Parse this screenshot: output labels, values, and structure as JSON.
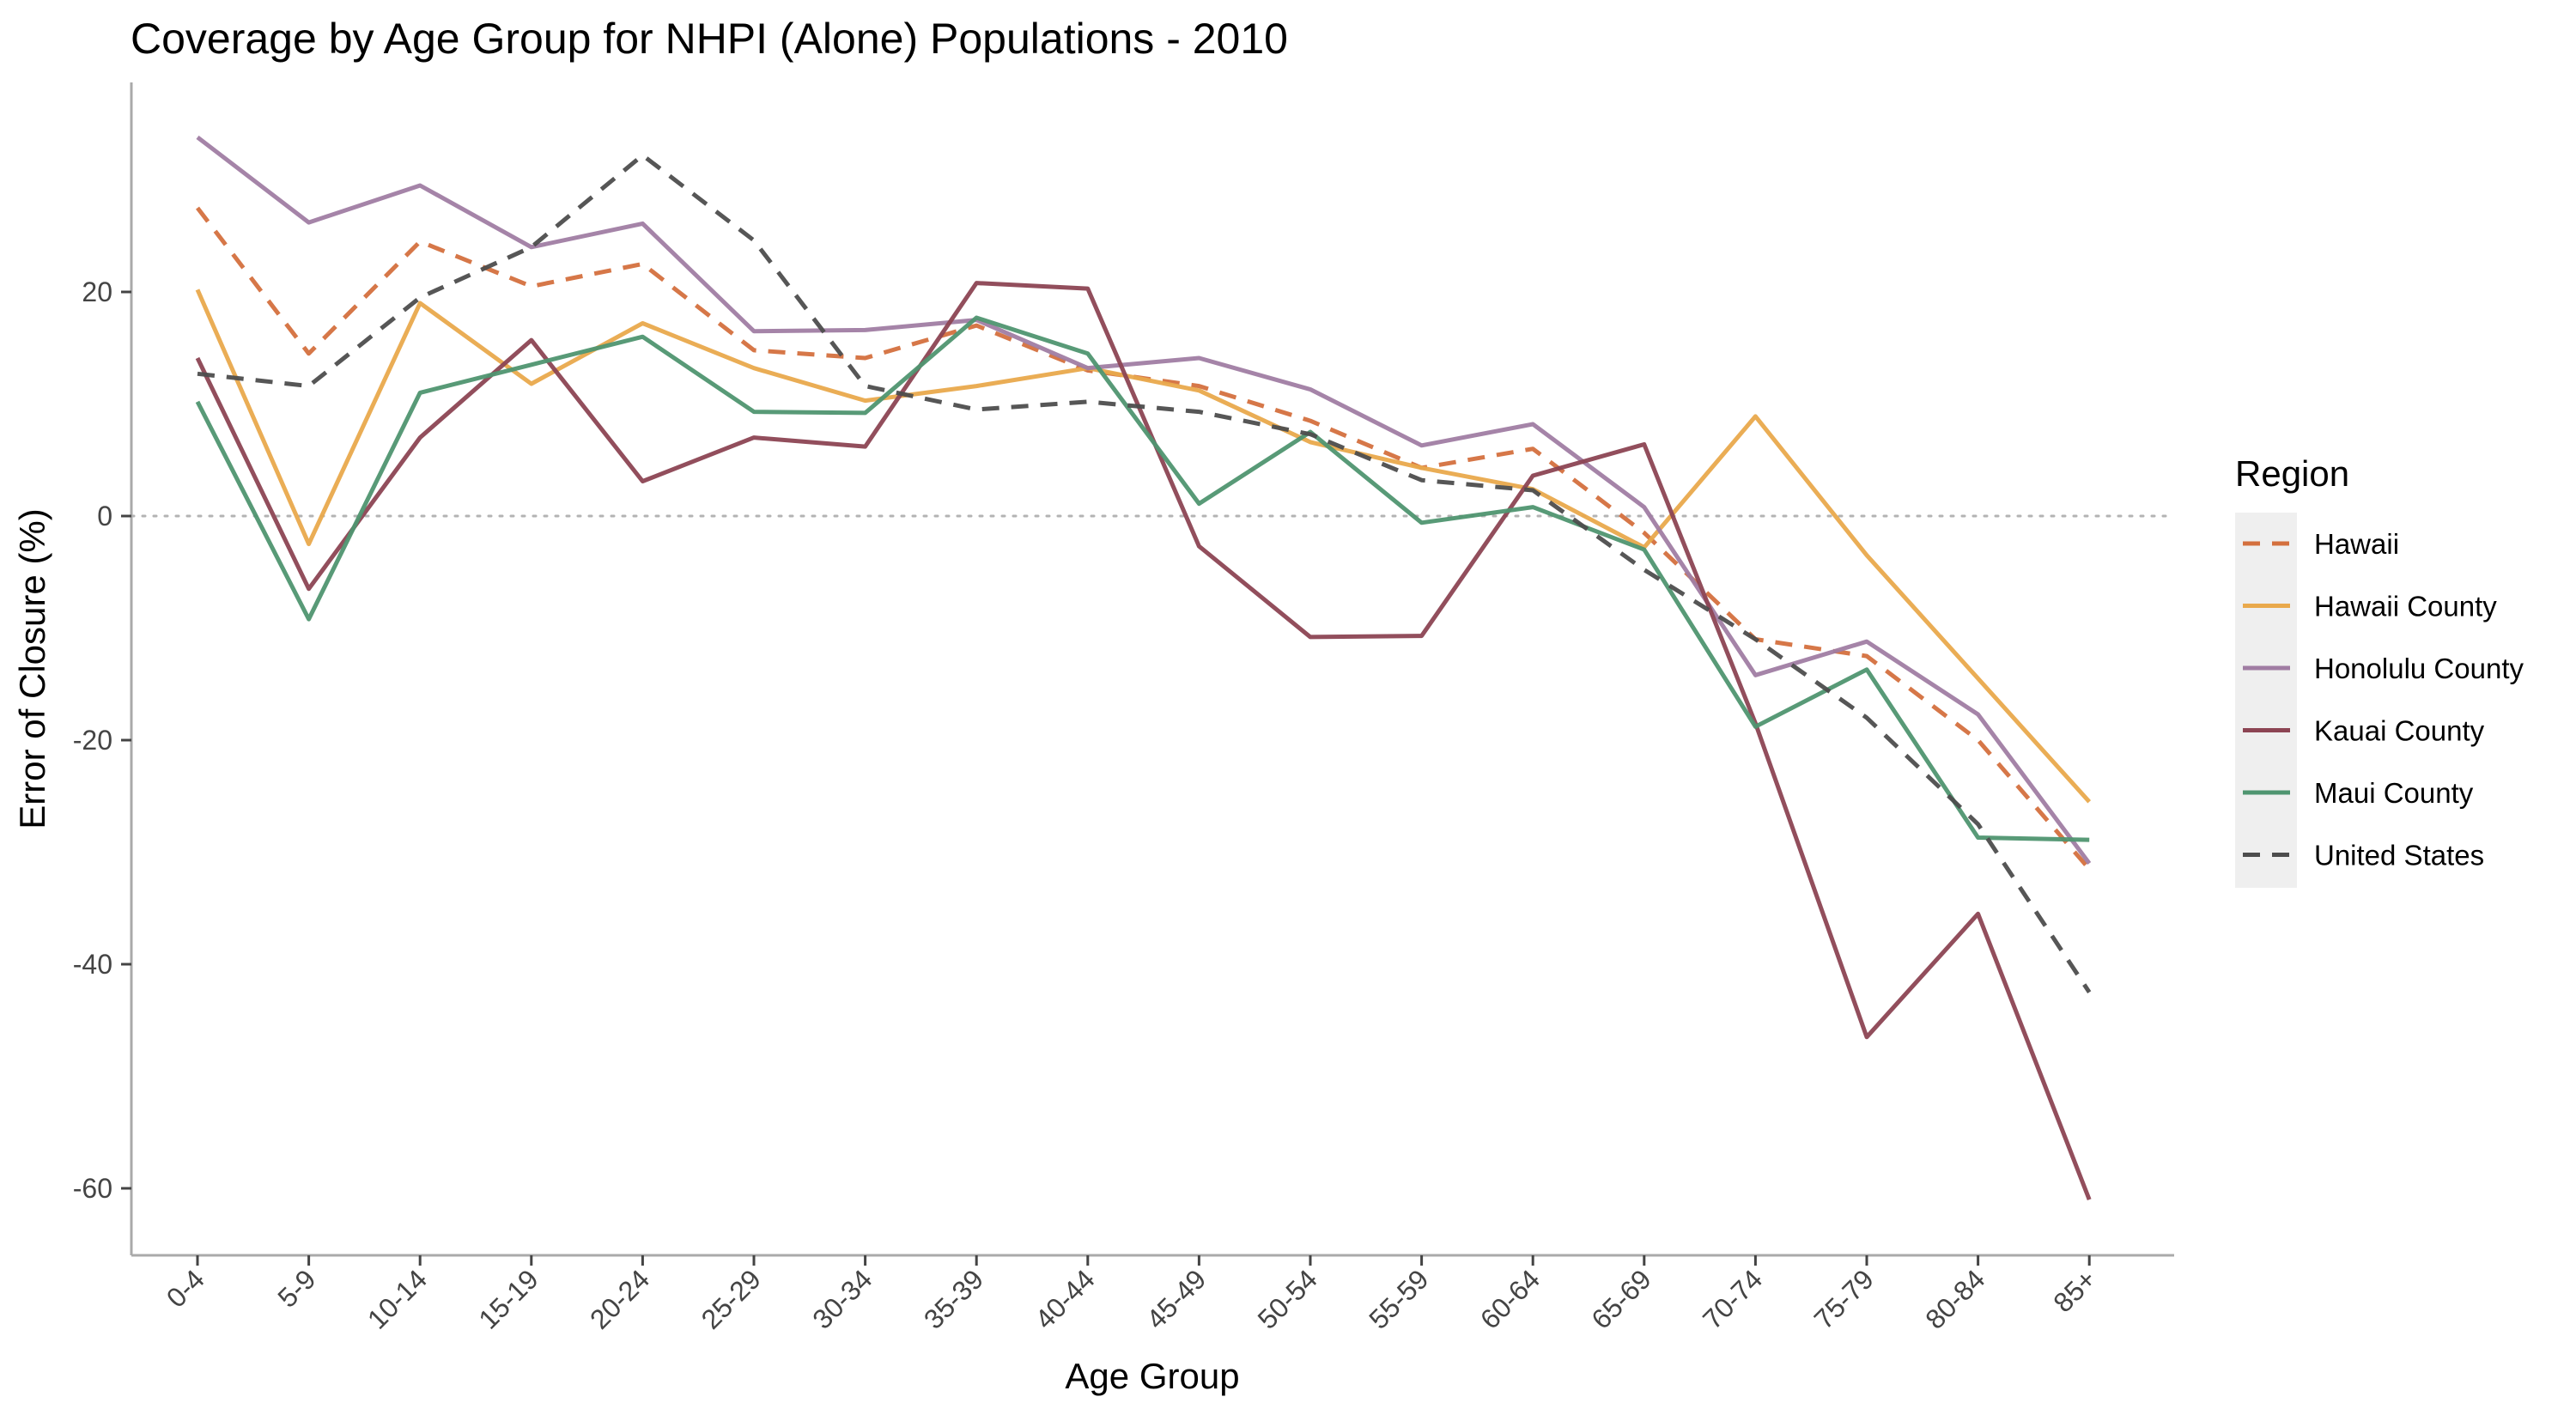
{
  "chart_data": {
    "type": "line",
    "title": "Coverage by Age Group for NHPI (Alone) Populations - 2010",
    "xlabel": "Age Group",
    "ylabel": "Error of Closure (%)",
    "categories": [
      "0-4",
      "5-9",
      "10-14",
      "15-19",
      "20-24",
      "25-29",
      "30-34",
      "35-39",
      "40-44",
      "45-49",
      "50-54",
      "55-59",
      "60-64",
      "65-69",
      "70-74",
      "75-79",
      "80-84",
      "85+"
    ],
    "ylim": [
      -66,
      38
    ],
    "yticks": [
      20,
      0,
      -20,
      -40,
      -60
    ],
    "reference_line": 0,
    "grid": false,
    "legend_title": "Region",
    "legend_position": "right",
    "series": [
      {
        "name": "Hawaii",
        "color": "#D4703E",
        "dash": true,
        "values": [
          27.5,
          14.5,
          24.5,
          20.5,
          22.5,
          14.8,
          14.1,
          17.0,
          13.0,
          11.6,
          8.5,
          4.3,
          6.0,
          -1.5,
          -11.0,
          -12.5,
          -20.0,
          -31.5
        ]
      },
      {
        "name": "Hawaii County",
        "color": "#E9A94C",
        "dash": false,
        "values": [
          20.2,
          -2.5,
          19.0,
          11.8,
          17.2,
          13.2,
          10.3,
          11.6,
          13.2,
          11.2,
          6.6,
          4.3,
          2.4,
          -2.8,
          8.9,
          -3.5,
          -14.5,
          -25.5
        ]
      },
      {
        "name": "Honolulu County",
        "color": "#A07DA3",
        "dash": false,
        "values": [
          33.8,
          26.2,
          29.5,
          24.0,
          26.1,
          16.5,
          16.6,
          17.5,
          13.2,
          14.1,
          11.3,
          6.3,
          8.2,
          0.8,
          -14.2,
          -11.2,
          -17.7,
          -31.0
        ]
      },
      {
        "name": "Kauai County",
        "color": "#8C4453",
        "dash": false,
        "values": [
          14.1,
          -6.5,
          7.0,
          15.7,
          3.1,
          7.0,
          6.2,
          20.8,
          20.3,
          -2.7,
          -10.8,
          -10.7,
          3.6,
          6.4,
          -18.5,
          -46.5,
          -35.5,
          -61.0
        ]
      },
      {
        "name": "Maui County",
        "color": "#4F9570",
        "dash": false,
        "values": [
          10.2,
          -9.2,
          11.0,
          13.5,
          16.0,
          9.3,
          9.2,
          17.7,
          14.5,
          1.1,
          7.5,
          -0.6,
          0.8,
          -3.0,
          -18.8,
          -13.7,
          -28.7,
          -28.9
        ]
      },
      {
        "name": "United States",
        "color": "#4D4D4D",
        "dash": true,
        "values": [
          12.7,
          11.6,
          19.5,
          24.0,
          32.2,
          24.6,
          11.6,
          9.5,
          10.2,
          9.3,
          7.3,
          3.2,
          2.3,
          -4.8,
          -11.0,
          -18.0,
          -27.5,
          -42.5
        ]
      }
    ]
  }
}
